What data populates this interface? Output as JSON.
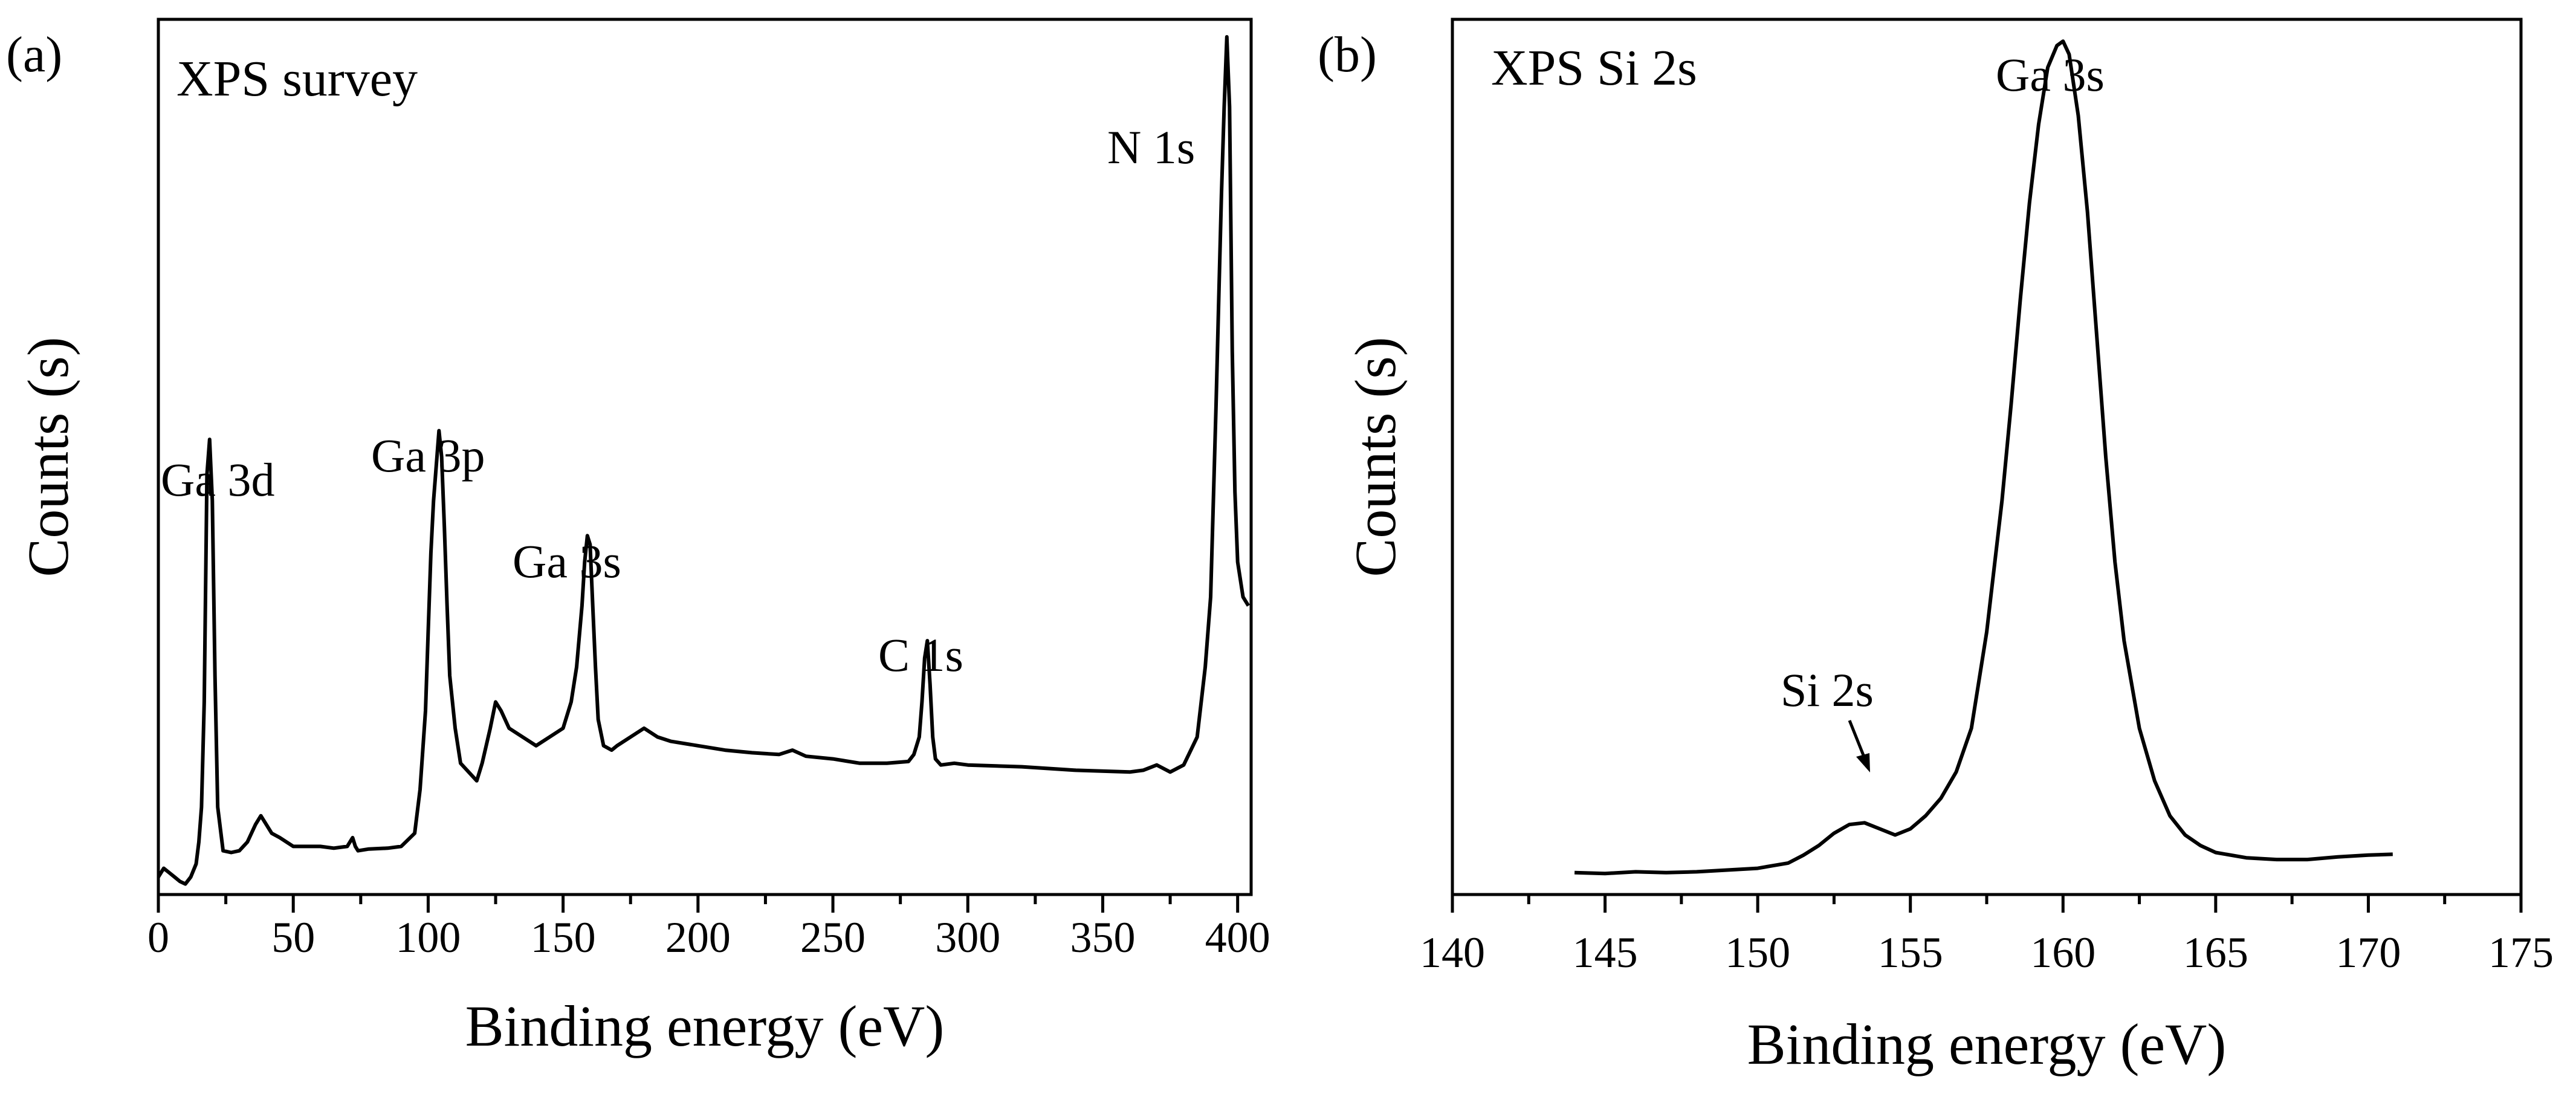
{
  "chart_data": [
    {
      "type": "line",
      "panel_label": "(a)",
      "title": "XPS survey",
      "xlabel": "Binding energy (eV)",
      "ylabel": "Counts (s)",
      "xlim": [
        0,
        405
      ],
      "ylim": [
        0,
        1
      ],
      "xticks": [
        0,
        50,
        100,
        150,
        200,
        250,
        300,
        350,
        400
      ],
      "yticks": [],
      "annotations": [
        {
          "text": "Ga 3d",
          "x": 18
        },
        {
          "text": "Ga 3p",
          "x": 104
        },
        {
          "text": "Ga 3s",
          "x": 160
        },
        {
          "text": "C 1s",
          "x": 285
        },
        {
          "text": "N 1s",
          "x": 397
        }
      ],
      "series": [
        {
          "name": "XPS survey",
          "x": [
            0,
            2,
            4,
            6,
            8,
            10,
            12,
            14,
            15,
            16,
            17,
            18,
            19,
            20,
            21,
            22,
            24,
            27,
            30,
            33,
            36,
            38,
            40,
            42,
            45,
            50,
            55,
            60,
            65,
            70,
            71,
            72,
            73,
            74,
            78,
            85,
            90,
            95,
            97,
            99,
            100,
            101,
            102,
            103,
            104,
            105,
            106,
            107,
            108,
            110,
            112,
            115,
            118,
            120,
            123,
            125,
            127,
            130,
            135,
            140,
            145,
            150,
            153,
            155,
            157,
            158,
            159,
            160,
            161,
            162,
            163,
            165,
            168,
            170,
            175,
            180,
            185,
            190,
            200,
            210,
            220,
            230,
            235,
            240,
            250,
            260,
            270,
            278,
            280,
            282,
            283,
            284,
            285,
            286,
            287,
            288,
            290,
            295,
            300,
            320,
            340,
            360,
            365,
            370,
            375,
            380,
            385,
            388,
            390,
            391,
            392,
            393,
            394,
            395,
            396,
            397,
            398,
            399,
            400,
            402,
            404
          ],
          "values": [
            0.02,
            0.03,
            0.025,
            0.02,
            0.015,
            0.012,
            0.02,
            0.035,
            0.06,
            0.1,
            0.22,
            0.48,
            0.52,
            0.45,
            0.25,
            0.1,
            0.05,
            0.048,
            0.05,
            0.06,
            0.08,
            0.09,
            0.08,
            0.07,
            0.065,
            0.055,
            0.055,
            0.055,
            0.053,
            0.055,
            0.06,
            0.065,
            0.055,
            0.05,
            0.052,
            0.053,
            0.055,
            0.07,
            0.12,
            0.21,
            0.3,
            0.39,
            0.45,
            0.49,
            0.53,
            0.5,
            0.42,
            0.33,
            0.25,
            0.19,
            0.15,
            0.14,
            0.13,
            0.15,
            0.19,
            0.22,
            0.21,
            0.19,
            0.18,
            0.17,
            0.18,
            0.19,
            0.22,
            0.26,
            0.33,
            0.38,
            0.41,
            0.4,
            0.33,
            0.26,
            0.2,
            0.17,
            0.165,
            0.17,
            0.18,
            0.19,
            0.18,
            0.175,
            0.17,
            0.165,
            0.162,
            0.16,
            0.165,
            0.158,
            0.155,
            0.15,
            0.15,
            0.152,
            0.16,
            0.18,
            0.22,
            0.27,
            0.29,
            0.24,
            0.18,
            0.155,
            0.148,
            0.15,
            0.148,
            0.146,
            0.142,
            0.14,
            0.142,
            0.148,
            0.14,
            0.148,
            0.18,
            0.26,
            0.34,
            0.45,
            0.56,
            0.68,
            0.8,
            0.9,
            0.98,
            0.9,
            0.62,
            0.46,
            0.38,
            0.34,
            0.33
          ]
        }
      ]
    },
    {
      "type": "line",
      "panel_label": "(b)",
      "title": "XPS Si 2s",
      "xlabel": "Binding energy (eV)",
      "ylabel": "Counts (s)",
      "xlim": [
        140,
        175
      ],
      "ylim": [
        0,
        1
      ],
      "xticks": [
        140,
        145,
        150,
        155,
        160,
        165,
        170,
        175
      ],
      "yticks": [],
      "annotations": [
        {
          "text": "Si 2s",
          "x": 153.5,
          "arrow": true
        },
        {
          "text": "Ga 3s",
          "x": 160
        }
      ],
      "series": [
        {
          "name": "XPS Si 2s",
          "x": [
            144,
            145,
            146,
            147,
            148,
            149,
            150,
            150.5,
            151,
            151.5,
            152,
            152.5,
            153,
            153.5,
            154,
            154.5,
            155,
            155.5,
            156,
            156.5,
            157,
            157.5,
            158,
            158.3,
            158.6,
            158.9,
            159.2,
            159.5,
            159.8,
            160,
            160.2,
            160.5,
            160.8,
            161.1,
            161.4,
            161.7,
            162,
            162.5,
            163,
            163.5,
            164,
            164.5,
            165,
            166,
            167,
            168,
            169,
            170,
            170.8
          ],
          "values": [
            0.025,
            0.024,
            0.026,
            0.025,
            0.026,
            0.028,
            0.03,
            0.033,
            0.036,
            0.045,
            0.056,
            0.07,
            0.08,
            0.082,
            0.075,
            0.068,
            0.075,
            0.09,
            0.11,
            0.14,
            0.19,
            0.3,
            0.45,
            0.56,
            0.68,
            0.79,
            0.88,
            0.945,
            0.97,
            0.975,
            0.96,
            0.89,
            0.78,
            0.64,
            0.5,
            0.38,
            0.29,
            0.19,
            0.13,
            0.09,
            0.068,
            0.056,
            0.048,
            0.042,
            0.04,
            0.04,
            0.043,
            0.045,
            0.046
          ]
        }
      ]
    }
  ]
}
